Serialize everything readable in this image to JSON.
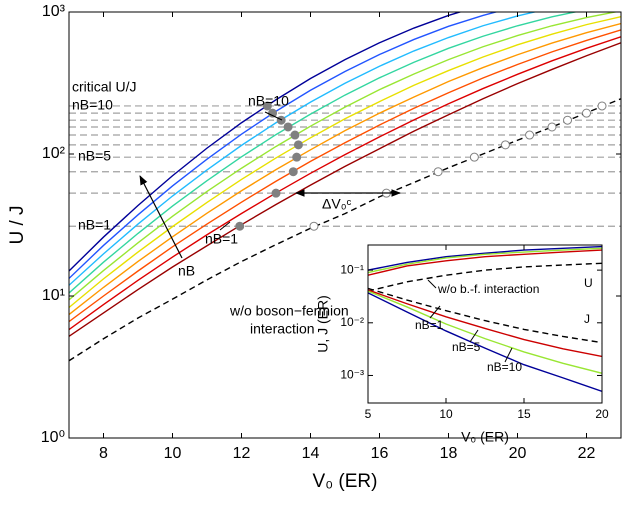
{
  "chart_data": [
    {
      "type": "line",
      "x_label": "V₀ (ER)",
      "y_label": "U / J",
      "xlim": [
        7,
        23
      ],
      "ylim": [
        1,
        1000
      ],
      "log_y": true,
      "xticks": [
        8,
        10,
        12,
        14,
        16,
        18,
        20,
        22
      ],
      "yticks": [
        {
          "value": 1,
          "label": "10⁰"
        },
        {
          "value": 10,
          "label": "10¹"
        },
        {
          "value": 100,
          "label": "10²"
        },
        {
          "value": 1000,
          "label": "10³"
        }
      ],
      "x": [
        7,
        8,
        9,
        10,
        11,
        12,
        13,
        14,
        15,
        16,
        17,
        18,
        19,
        20,
        21,
        22,
        23
      ],
      "series": [
        {
          "color": "#990000",
          "values": [
            5.2,
            7.6,
            11.1,
            16.0,
            22.6,
            31.8,
            44.1,
            60.4,
            81.8,
            109,
            145,
            189,
            245,
            313,
            394,
            492,
            607
          ]
        },
        {
          "color": "#dd0000",
          "values": [
            5.8,
            8.7,
            12.9,
            18.8,
            27.0,
            38.1,
            53.2,
            73.1,
            99,
            132,
            174,
            226,
            289,
            364,
            453,
            555,
            669
          ]
        },
        {
          "color": "#ff5000",
          "values": [
            6.6,
            10.0,
            15.0,
            22.2,
            32.1,
            45.8,
            64.3,
            88.7,
            120,
            160,
            210,
            270,
            343,
            427,
            524,
            631,
            748
          ]
        },
        {
          "color": "#ff9900",
          "values": [
            7.4,
            11.5,
            17.5,
            26.1,
            38.3,
            55.1,
            77.6,
            107,
            146,
            194,
            252,
            324,
            406,
            500,
            604,
            715,
            830
          ]
        },
        {
          "color": "#e8e000",
          "values": [
            8.3,
            13.2,
            20.4,
            30.8,
            45.6,
            66.2,
            93.8,
            130,
            177,
            234,
            305,
            387,
            482,
            587,
            698,
            815,
            927
          ]
        },
        {
          "color": "#99e633",
          "values": [
            9.4,
            15.1,
            23.7,
            36.4,
            54.5,
            79.4,
            113,
            157,
            214,
            284,
            366,
            462,
            569,
            682,
            800,
            914,
            1019
          ]
        },
        {
          "color": "#33d6a0",
          "values": [
            10.5,
            17.3,
            27.6,
            43.0,
            64.9,
            95.5,
            137,
            191,
            260,
            344,
            443,
            555,
            675,
            800,
            925,
            1040,
            null
          ]
        },
        {
          "color": "#22bbff",
          "values": [
            11.9,
            19.8,
            32.1,
            50.6,
            77.3,
            115,
            166,
            232,
            315,
            415,
            532,
            661,
            800,
            938,
            1069,
            null,
            null
          ]
        },
        {
          "color": "#2255ff",
          "values": [
            13.3,
            22.7,
            37.3,
            59.6,
            92.0,
            138,
            200,
            281,
            381,
            502,
            641,
            793,
            946,
            1099,
            null,
            null,
            null
          ]
        },
        {
          "color": "#000099",
          "values": [
            15.0,
            26.0,
            43.4,
            70.3,
            110,
            166,
            241,
            340,
            462,
            607,
            771,
            946,
            1119,
            null,
            null,
            null,
            null
          ]
        },
        {
          "color": "#000000",
          "dash": true,
          "values": [
            3.5,
            5,
            7,
            9.5,
            13,
            17.5,
            23,
            30,
            38,
            50,
            63,
            80,
            100,
            125,
            155,
            195,
            245
          ]
        }
      ],
      "critical_levels": [
        31,
        53,
        75,
        95,
        116,
        136,
        155,
        173,
        194,
        218
      ],
      "critical_level_color": "#a0a0a0",
      "critical_points": {
        "color": "#808080",
        "x": [
          11.95,
          13.0,
          13.5,
          13.6,
          13.65,
          13.55,
          13.35,
          13.15,
          12.9,
          12.75
        ],
        "values": [
          31,
          53,
          75,
          95,
          116,
          136,
          155,
          173,
          194,
          218
        ]
      },
      "bare_critical_points": {
        "color": "#808080",
        "x": [
          14.1,
          16.2,
          17.7,
          18.75,
          19.65,
          20.35,
          21.0,
          21.45,
          22.0,
          22.45
        ],
        "values": [
          31,
          53,
          75,
          95,
          116,
          136,
          155,
          173,
          194,
          218
        ]
      },
      "annotations": [
        "critical U/J",
        "nB=10",
        "nB=5",
        "nB=1",
        "nB=10",
        "nB=1",
        "nB",
        "ΔV₀ᶜ",
        "w/o boson−fermion",
        "interaction"
      ]
    },
    {
      "type": "line",
      "x_label": "V₀ (ER)",
      "y_label": "U, J (ER)",
      "xlim": [
        5,
        20
      ],
      "ylim": [
        0.0003,
        0.3
      ],
      "log_y": true,
      "xticks": [
        5,
        10,
        15,
        20
      ],
      "yticks": [
        {
          "value": 0.001,
          "label": "10⁻³"
        },
        {
          "value": 0.01,
          "label": "10⁻²"
        },
        {
          "value": 0.1,
          "label": "10⁻¹"
        }
      ],
      "x": [
        5,
        7.5,
        10,
        12.5,
        15,
        17.5,
        20
      ],
      "series": [
        {
          "color": "#000099",
          "values": [
            0.1,
            0.14,
            0.18,
            0.21,
            0.24,
            0.26,
            0.28
          ]
        },
        {
          "color": "#99e633",
          "values": [
            0.09,
            0.13,
            0.17,
            0.2,
            0.22,
            0.24,
            0.26
          ]
        },
        {
          "color": "#cc0000",
          "values": [
            0.08,
            0.12,
            0.15,
            0.18,
            0.2,
            0.22,
            0.24
          ]
        },
        {
          "color": "#000000",
          "dash": true,
          "values": [
            0.04,
            0.06,
            0.08,
            0.1,
            0.115,
            0.125,
            0.135
          ]
        },
        {
          "color": "#000000",
          "dash": true,
          "values": [
            0.045,
            0.027,
            0.017,
            0.011,
            0.0075,
            0.0055,
            0.0042
          ]
        },
        {
          "color": "#cc0000",
          "values": [
            0.042,
            0.023,
            0.013,
            0.0078,
            0.0048,
            0.0032,
            0.0023
          ]
        },
        {
          "color": "#99e633",
          "values": [
            0.04,
            0.02,
            0.0095,
            0.005,
            0.0028,
            0.0017,
            0.0011
          ]
        },
        {
          "color": "#000099",
          "values": [
            0.037,
            0.016,
            0.007,
            0.0033,
            0.0016,
            0.0009,
            0.0005
          ]
        }
      ],
      "annotations": [
        "U",
        "J",
        "w/o b.-f. interaction",
        "nB=1",
        "nB=5",
        "nB=10"
      ]
    }
  ]
}
